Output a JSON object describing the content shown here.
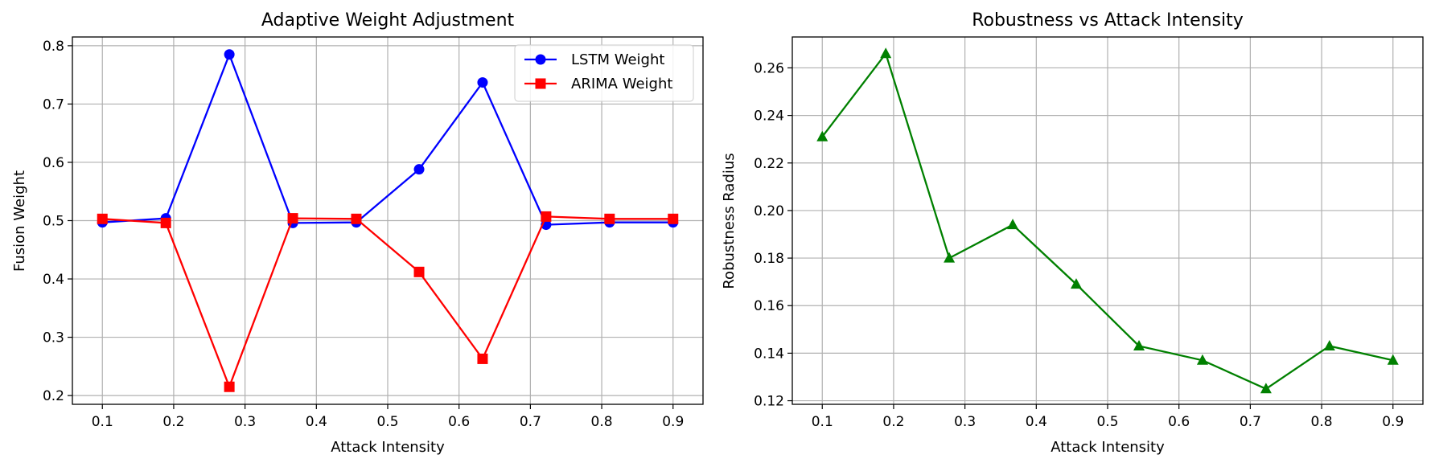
{
  "chart_data": [
    {
      "type": "line",
      "title": "Adaptive Weight Adjustment",
      "xlabel": "Attack Intensity",
      "ylabel": "Fusion Weight",
      "xlim": [
        0.058,
        0.942
      ],
      "ylim": [
        0.185,
        0.815
      ],
      "xticks": [
        0.1,
        0.2,
        0.3,
        0.4,
        0.5,
        0.6,
        0.7,
        0.8,
        0.9
      ],
      "yticks": [
        0.2,
        0.3,
        0.4,
        0.5,
        0.6,
        0.7,
        0.8
      ],
      "xtick_labels": [
        "0.1",
        "0.2",
        "0.3",
        "0.4",
        "0.5",
        "0.6",
        "0.7",
        "0.8",
        "0.9"
      ],
      "ytick_labels": [
        "0.2",
        "0.3",
        "0.4",
        "0.5",
        "0.6",
        "0.7",
        "0.8"
      ],
      "grid": true,
      "legend": "upper right",
      "x": [
        0.1,
        0.189,
        0.278,
        0.367,
        0.456,
        0.544,
        0.633,
        0.722,
        0.811,
        0.9
      ],
      "series": [
        {
          "name": "LSTM Weight",
          "color": "#0000ff",
          "marker": "circle",
          "values": [
            0.497,
            0.504,
            0.785,
            0.496,
            0.497,
            0.588,
            0.737,
            0.493,
            0.497,
            0.497
          ]
        },
        {
          "name": "ARIMA Weight",
          "color": "#ff0000",
          "marker": "square",
          "values": [
            0.503,
            0.496,
            0.215,
            0.504,
            0.503,
            0.412,
            0.263,
            0.507,
            0.503,
            0.503
          ]
        }
      ]
    },
    {
      "type": "line",
      "title": "Robustness vs Attack Intensity",
      "xlabel": "Attack Intensity",
      "ylabel": "Robustness Radius",
      "xlim": [
        0.058,
        0.942
      ],
      "ylim": [
        0.1185,
        0.273
      ],
      "xticks": [
        0.1,
        0.2,
        0.3,
        0.4,
        0.5,
        0.6,
        0.7,
        0.8,
        0.9
      ],
      "yticks": [
        0.12,
        0.14,
        0.16,
        0.18,
        0.2,
        0.22,
        0.24,
        0.26
      ],
      "xtick_labels": [
        "0.1",
        "0.2",
        "0.3",
        "0.4",
        "0.5",
        "0.6",
        "0.7",
        "0.8",
        "0.9"
      ],
      "ytick_labels": [
        "0.12",
        "0.14",
        "0.16",
        "0.18",
        "0.20",
        "0.22",
        "0.24",
        "0.26"
      ],
      "grid": true,
      "x": [
        0.1,
        0.189,
        0.278,
        0.367,
        0.456,
        0.544,
        0.633,
        0.722,
        0.811,
        0.9
      ],
      "series": [
        {
          "color": "#008000",
          "marker": "triangle",
          "values": [
            0.231,
            0.266,
            0.18,
            0.194,
            0.169,
            0.143,
            0.137,
            0.125,
            0.143,
            0.137
          ]
        }
      ]
    }
  ]
}
